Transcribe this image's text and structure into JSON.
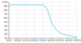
{
  "chart_data": {
    "type": "line",
    "x": [
      500,
      550,
      600,
      700,
      800,
      900,
      1000,
      1100,
      1200,
      1300,
      1400,
      1500,
      1600,
      1700,
      1800,
      1900,
      2000,
      2100,
      2200,
      2300,
      2400,
      2500,
      2600,
      2700,
      2800,
      2900,
      3000,
      3100,
      3200,
      3300,
      3400,
      3500,
      3600,
      3700,
      3800,
      3900,
      4000,
      4100,
      4200,
      4300,
      4400,
      4500
    ],
    "values": [
      93,
      93.5,
      93.8,
      94,
      94,
      94,
      94,
      94,
      94,
      94,
      94,
      94,
      94,
      94,
      94,
      94,
      94,
      94,
      94,
      94,
      94,
      93.5,
      91,
      86,
      77,
      64,
      50,
      42,
      36,
      31,
      27,
      24,
      22,
      20,
      19,
      18,
      17,
      16,
      15,
      14,
      14,
      13
    ],
    "color": "#55ccee",
    "xlim": [
      500,
      4500
    ],
    "ylim": [
      10,
      100
    ],
    "xticks": [
      500,
      1000,
      1500,
      2000,
      2500,
      3000,
      3500,
      4000,
      4500
    ],
    "yticks": [
      10,
      20,
      30,
      40,
      50,
      60,
      70,
      80,
      90,
      100
    ],
    "grid": true
  }
}
